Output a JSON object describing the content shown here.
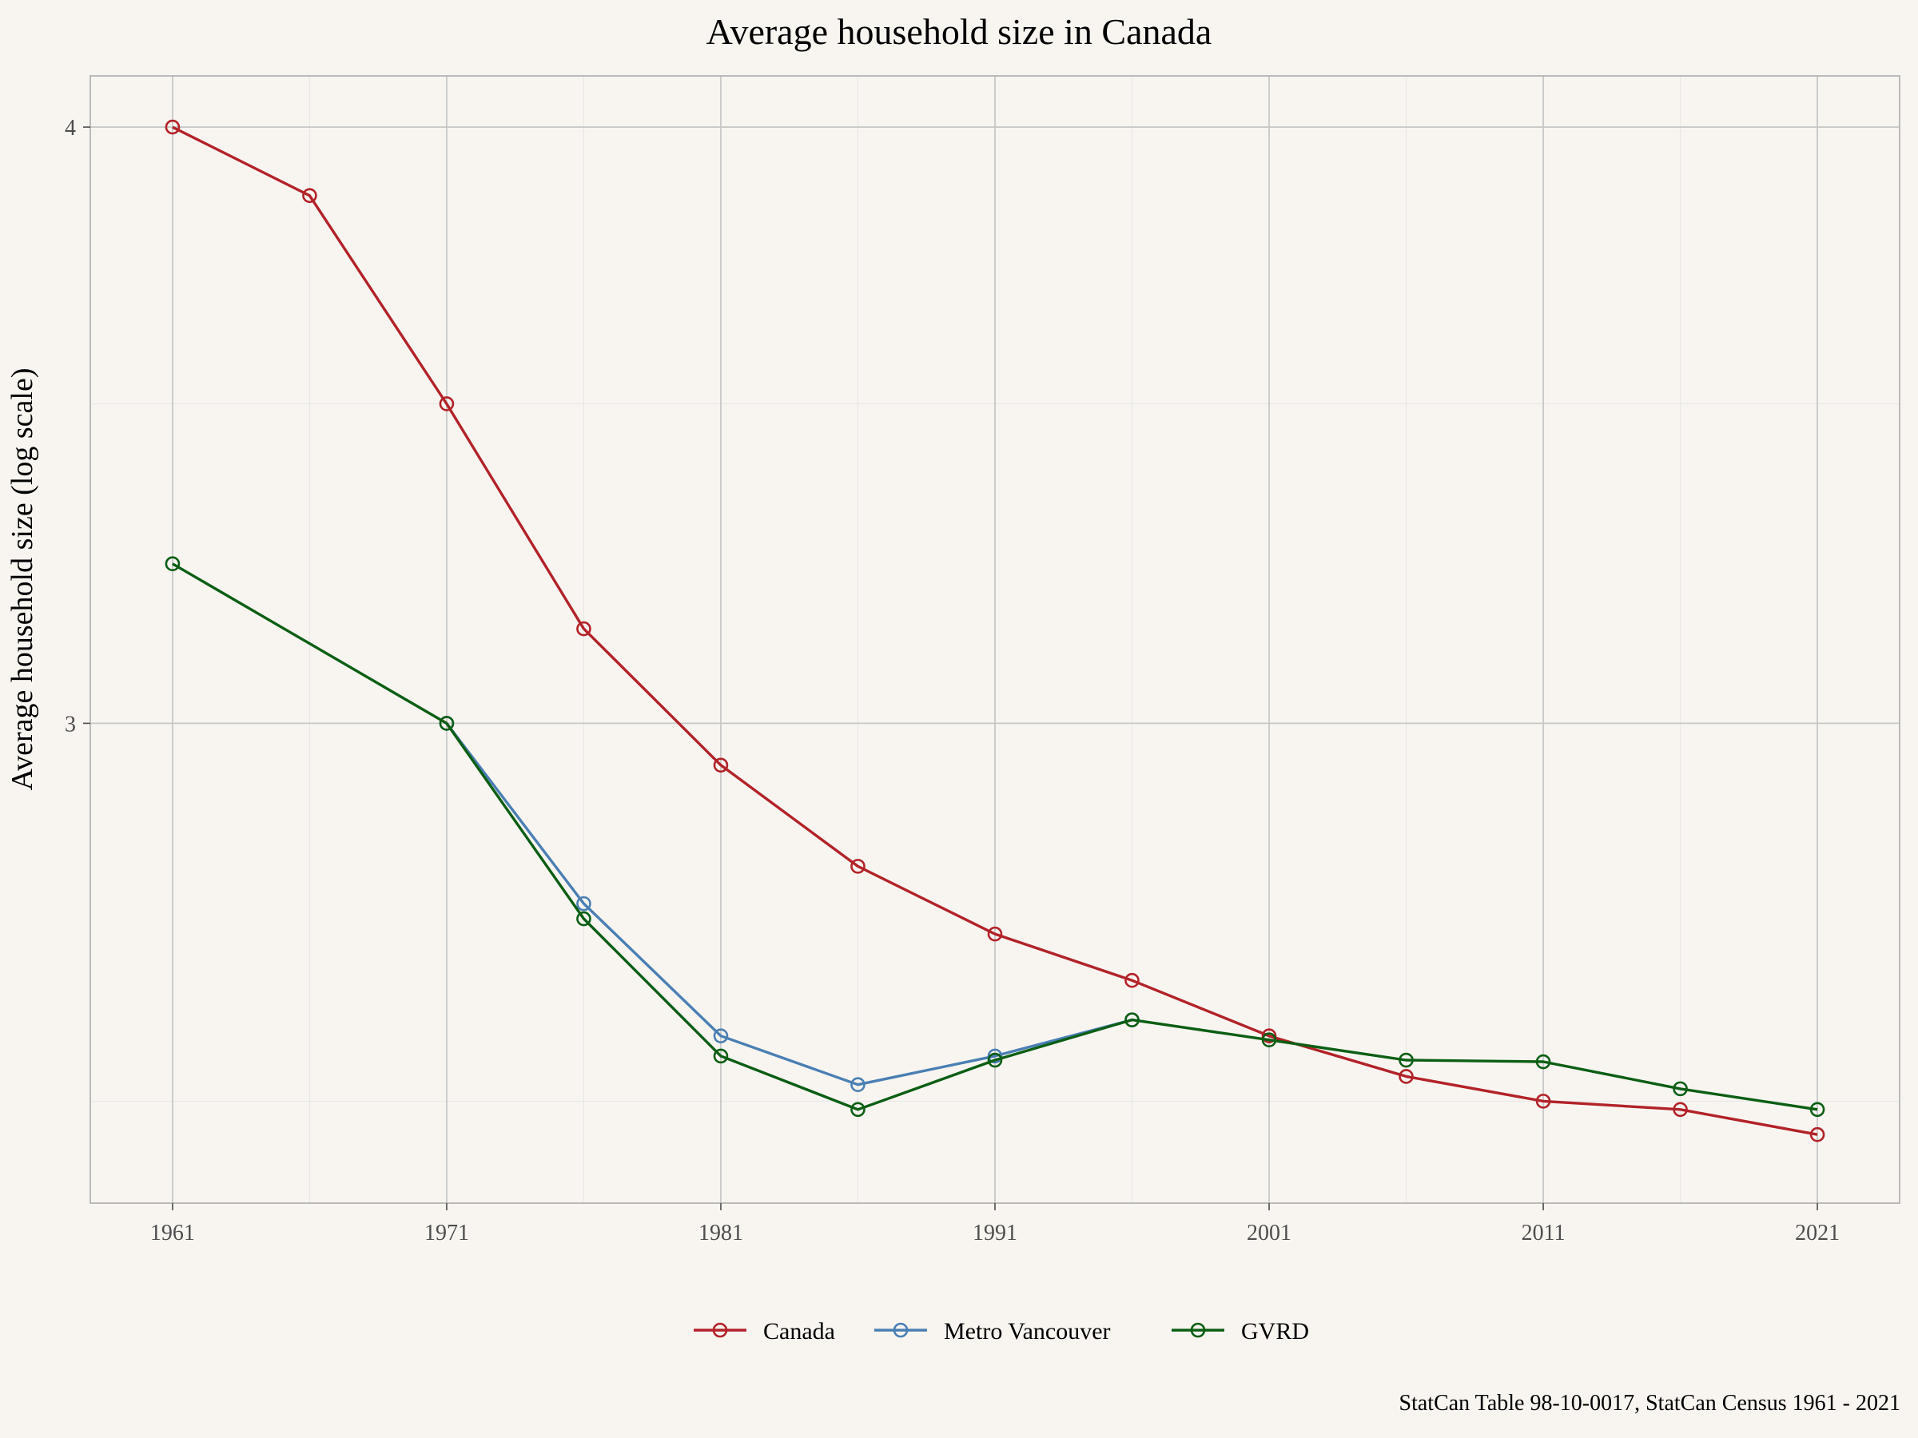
{
  "chart_data": {
    "type": "line",
    "title": "Average household size in Canada",
    "xlabel": "",
    "ylabel": "Average household size (log scale)",
    "caption": "StatCan Table 98-10-0017, StatCan Census 1961 - 2021",
    "y_scale": "log",
    "xlim": [
      1958,
      2024
    ],
    "ylim": [
      2.38,
      4.1
    ],
    "x_ticks": [
      1961,
      1971,
      1981,
      1991,
      2001,
      2011,
      2021
    ],
    "x_minor_ticks": [
      1966,
      1976,
      1986,
      1996,
      2006,
      2016
    ],
    "y_ticks": [
      3,
      4
    ],
    "y_minor_ticks": [
      2.5,
      3.5
    ],
    "grid": true,
    "legend_position": "bottom",
    "series": [
      {
        "name": "Canada",
        "color": "#b22228",
        "x": [
          1961,
          1966,
          1971,
          1976,
          1981,
          1986,
          1991,
          1996,
          2001,
          2006,
          2011,
          2016,
          2021
        ],
        "y": [
          4.0,
          3.87,
          3.5,
          3.14,
          2.94,
          2.8,
          2.71,
          2.65,
          2.58,
          2.53,
          2.5,
          2.49,
          2.46
        ]
      },
      {
        "name": "Metro Vancouver",
        "color": "#4a7fb3",
        "x": [
          1971,
          1976,
          1981,
          1986,
          1991,
          1996
        ],
        "y": [
          3.0,
          2.75,
          2.58,
          2.52,
          2.555,
          2.6
        ]
      },
      {
        "name": "GVRD",
        "color": "#0b5e13",
        "x": [
          1961,
          1971,
          1976,
          1981,
          1986,
          1991,
          1996,
          2001,
          2006,
          2011,
          2016,
          2021
        ],
        "y": [
          3.24,
          3.0,
          2.73,
          2.555,
          2.49,
          2.55,
          2.6,
          2.575,
          2.55,
          2.548,
          2.515,
          2.49
        ]
      }
    ]
  }
}
